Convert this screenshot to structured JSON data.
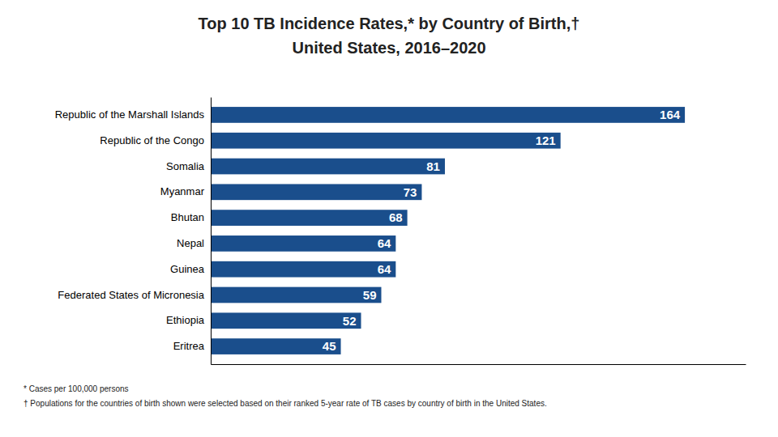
{
  "chart_data": {
    "type": "bar",
    "orientation": "horizontal",
    "title": "Top 10 TB Incidence Rates,* by Country of Birth,†",
    "subtitle": "United States, 2016–2020",
    "categories": [
      "Republic of the Marshall Islands",
      "Republic of the Congo",
      "Somalia",
      "Myanmar",
      "Bhutan",
      "Nepal",
      "Guinea",
      "Federated States of Micronesia",
      "Ethiopia",
      "Eritrea"
    ],
    "values": [
      164,
      121,
      81,
      73,
      68,
      64,
      64,
      59,
      52,
      45
    ],
    "color": "#1a4e8c",
    "xlim": [
      0,
      185
    ],
    "data_labels": true,
    "tick_labels": "y",
    "grid": false,
    "annotations": [
      "* Cases per 100,000  persons",
      "† Populations for the countries of birth shown were selected based on their ranked 5-year rate of TB cases by country of birth in the United States."
    ]
  }
}
